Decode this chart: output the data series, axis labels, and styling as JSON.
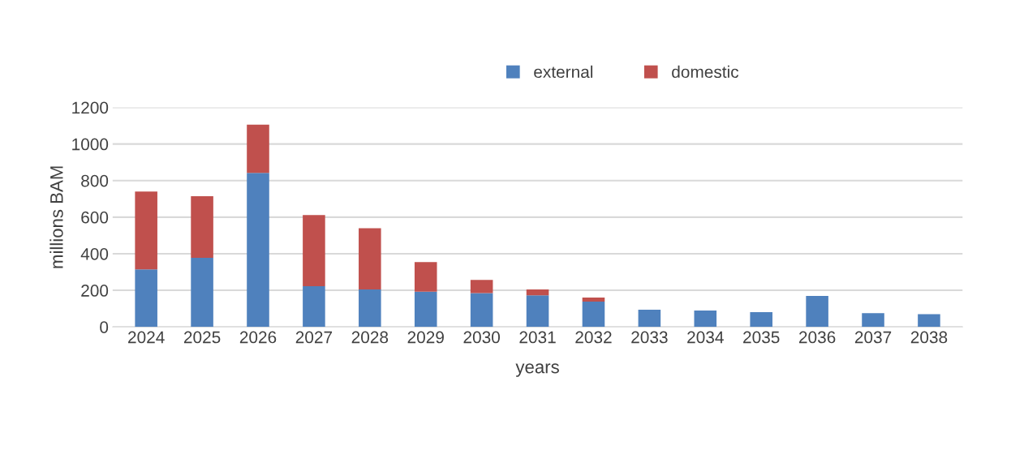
{
  "chart_data": {
    "type": "bar",
    "stacked": true,
    "xlabel": "years",
    "ylabel": "millions BAM",
    "categories": [
      "2024",
      "2025",
      "2026",
      "2027",
      "2028",
      "2029",
      "2030",
      "2031",
      "2032",
      "2033",
      "2034",
      "2035",
      "2036",
      "2037",
      "2038"
    ],
    "series": [
      {
        "name": "external",
        "color": "#4f81bd",
        "values": [
          314,
          378,
          842,
          223,
          205,
          193,
          185,
          173,
          138,
          94,
          89,
          81,
          169,
          75,
          70
        ]
      },
      {
        "name": "domestic",
        "color": "#c0504d",
        "values": [
          426,
          337,
          264,
          389,
          334,
          161,
          72,
          32,
          23,
          null,
          null,
          null,
          null,
          null,
          null
        ]
      }
    ],
    "ylim": [
      0,
      1200
    ],
    "yticks": [
      0,
      200,
      400,
      600,
      800,
      1000,
      1200
    ],
    "grid": "y",
    "legend": "top"
  }
}
